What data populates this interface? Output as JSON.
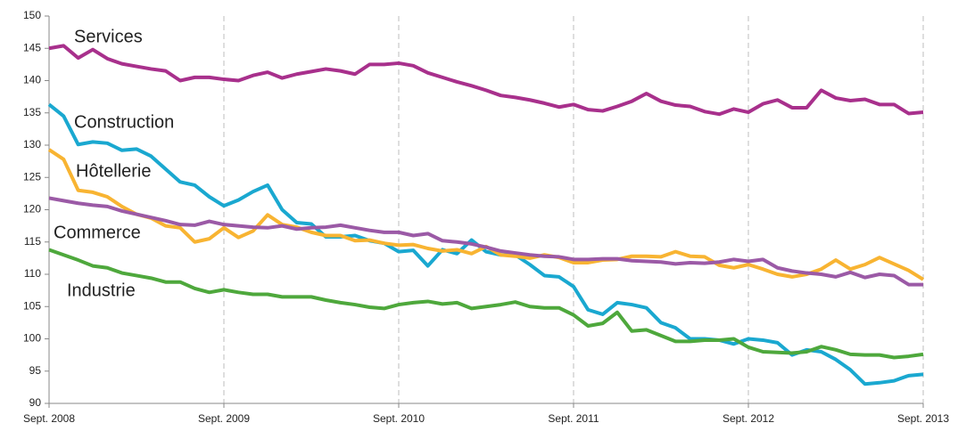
{
  "chart_data": {
    "type": "line",
    "categories": [
      "Sept. 2008",
      null,
      null,
      null,
      null,
      null,
      null,
      null,
      null,
      null,
      null,
      null,
      "Sept. 2009",
      null,
      null,
      null,
      null,
      null,
      null,
      null,
      null,
      null,
      null,
      null,
      "Sept. 2010",
      null,
      null,
      null,
      null,
      null,
      null,
      null,
      null,
      null,
      null,
      null,
      "Sept. 2011",
      null,
      null,
      null,
      null,
      null,
      null,
      null,
      null,
      null,
      null,
      null,
      "Sept. 2012",
      null,
      null,
      null,
      null,
      null,
      null,
      null,
      null,
      null,
      null,
      null,
      "Sept. 2013"
    ],
    "series": [
      {
        "name": "Services",
        "color": "#a8308c",
        "values": [
          145,
          145.4,
          143.5,
          144.8,
          143.4,
          142.6,
          142.2,
          141.8,
          141.5,
          140,
          140.5,
          140.5,
          140.2,
          140,
          140.8,
          141.3,
          140.4,
          141,
          141.4,
          141.8,
          141.5,
          141,
          142.5,
          142.5,
          142.7,
          142.3,
          141.2,
          140.5,
          139.8,
          139.2,
          138.5,
          137.7,
          137.4,
          137,
          136.5,
          135.9,
          136.3,
          135.5,
          135.3,
          136,
          136.8,
          138,
          136.8,
          136.2,
          136,
          135.2,
          134.8,
          135.6,
          135.1,
          136.4,
          137,
          135.8,
          135.8,
          138.5,
          137.3,
          136.9,
          137.1,
          136.3,
          136.3,
          134.9,
          135.1
        ]
      },
      {
        "name": "Construction",
        "color": "#1aa8d0",
        "values": [
          136.3,
          134.5,
          130.1,
          130.5,
          130.3,
          129.2,
          129.4,
          128.3,
          126.3,
          124.3,
          123.8,
          122,
          120.6,
          121.5,
          122.8,
          123.8,
          120,
          118,
          117.8,
          115.8,
          115.8,
          116,
          115.2,
          114.8,
          113.5,
          113.7,
          111.3,
          113.8,
          113.2,
          115.3,
          113.5,
          113,
          113,
          111.5,
          109.8,
          109.6,
          108.1,
          104.5,
          103.8,
          105.6,
          105.3,
          104.8,
          102.5,
          101.7,
          100,
          100,
          99.8,
          99.2,
          100,
          99.8,
          99.4,
          97.5,
          98.3,
          98,
          96.8,
          95.2,
          93,
          93.2,
          93.5,
          94.3,
          94.5
        ]
      },
      {
        "name": "Hôtellerie",
        "color": "#f8b432",
        "values": [
          129.3,
          127.8,
          123,
          122.7,
          122,
          120.5,
          119.3,
          118.7,
          117.5,
          117.2,
          115,
          115.5,
          117.2,
          115.7,
          116.7,
          119.2,
          117.7,
          117.3,
          116.5,
          116,
          116,
          115.2,
          115.3,
          114.8,
          114.5,
          114.6,
          114,
          113.6,
          113.8,
          113.2,
          114.3,
          113,
          112.8,
          112.5,
          113,
          112.6,
          111.8,
          111.8,
          112.2,
          112.3,
          112.8,
          112.8,
          112.7,
          113.5,
          112.8,
          112.7,
          111.4,
          111,
          111.5,
          110.8,
          110,
          109.6,
          110,
          110.8,
          112.2,
          110.8,
          111.5,
          112.6,
          111.6,
          110.6,
          109.2
        ]
      },
      {
        "name": "Commerce",
        "color": "#9b5aa6",
        "values": [
          121.8,
          121.4,
          121,
          120.7,
          120.5,
          119.8,
          119.3,
          118.8,
          118.3,
          117.7,
          117.6,
          118.2,
          117.7,
          117.5,
          117.3,
          117.2,
          117.5,
          117,
          117.2,
          117.3,
          117.6,
          117.2,
          116.8,
          116.5,
          116.5,
          116,
          116.3,
          115.2,
          115,
          114.7,
          114.2,
          113.6,
          113.3,
          113,
          112.8,
          112.7,
          112.3,
          112.3,
          112.4,
          112.4,
          112.1,
          112,
          111.9,
          111.6,
          111.8,
          111.7,
          111.9,
          112.3,
          112,
          112.3,
          111,
          110.5,
          110.2,
          110,
          109.6,
          110.3,
          109.5,
          110,
          109.8,
          108.4,
          108.4
        ]
      },
      {
        "name": "Industrie",
        "color": "#4ea83c",
        "values": [
          113.8,
          113,
          112.2,
          111.3,
          111,
          110.2,
          109.8,
          109.4,
          108.8,
          108.8,
          107.8,
          107.2,
          107.6,
          107.2,
          106.9,
          106.9,
          106.5,
          106.5,
          106.5,
          106,
          105.6,
          105.3,
          104.9,
          104.7,
          105.3,
          105.6,
          105.8,
          105.4,
          105.6,
          104.7,
          105,
          105.3,
          105.7,
          105,
          104.8,
          104.8,
          103.7,
          102,
          102.4,
          104.1,
          101.2,
          101.4,
          100.5,
          99.6,
          99.6,
          99.8,
          99.8,
          100,
          98.7,
          98,
          97.9,
          97.8,
          98,
          98.8,
          98.3,
          97.6,
          97.5,
          97.5,
          97.1,
          97.3,
          97.6
        ]
      }
    ],
    "ylim": [
      90,
      150
    ],
    "yticks": [
      90,
      95,
      100,
      105,
      110,
      115,
      120,
      125,
      130,
      135,
      140,
      145,
      150
    ],
    "grid": true
  }
}
